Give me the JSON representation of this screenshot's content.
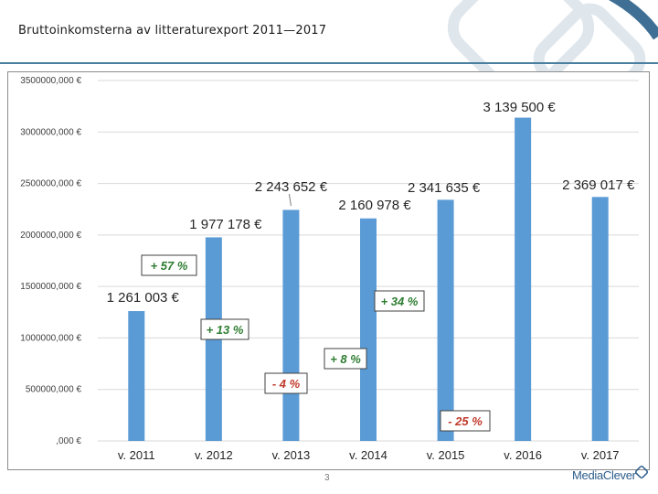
{
  "slide": {
    "title": "Bruttoinkomsterna av litteraturexport 2011—2017",
    "page_number": "3",
    "logo_text": "MediaClever"
  },
  "colors": {
    "bar": "#5b9bd5",
    "positive_change": "#2e7d32",
    "negative_change": "#c0392b",
    "rule": "#4a7fa0"
  },
  "chart_data": {
    "type": "bar",
    "title": "",
    "categories": [
      "v. 2011",
      "v. 2012",
      "v. 2013",
      "v. 2014",
      "v. 2015",
      "v. 2016",
      "v. 2017"
    ],
    "values": [
      1261003,
      1977178,
      2243652,
      2160978,
      2341635,
      3139500,
      2369017
    ],
    "value_labels": [
      "1 261 003 €",
      "1 977 178 €",
      "2 243 652 €",
      "2 160 978 €",
      "2 341 635 €",
      "3 139 500 €",
      "2 369 017 €"
    ],
    "changes": [
      "",
      "+ 57 %",
      "+ 13 %",
      "- 4 %",
      "+ 8 %",
      "+ 34 %",
      "- 25 %"
    ],
    "y_ticks": [
      0,
      500000,
      1000000,
      1500000,
      2000000,
      2500000,
      3000000,
      3500000
    ],
    "y_tick_labels": [
      ",000 €",
      "500000,000 €",
      "1000000,000 €",
      "1500000,000 €",
      "2000000,000 €",
      "2500000,000 €",
      "3000000,000 €",
      "3500000,000 €"
    ],
    "ylim": [
      0,
      3500000
    ],
    "xlabel": "",
    "ylabel": "",
    "grid": true,
    "legend": "none"
  }
}
